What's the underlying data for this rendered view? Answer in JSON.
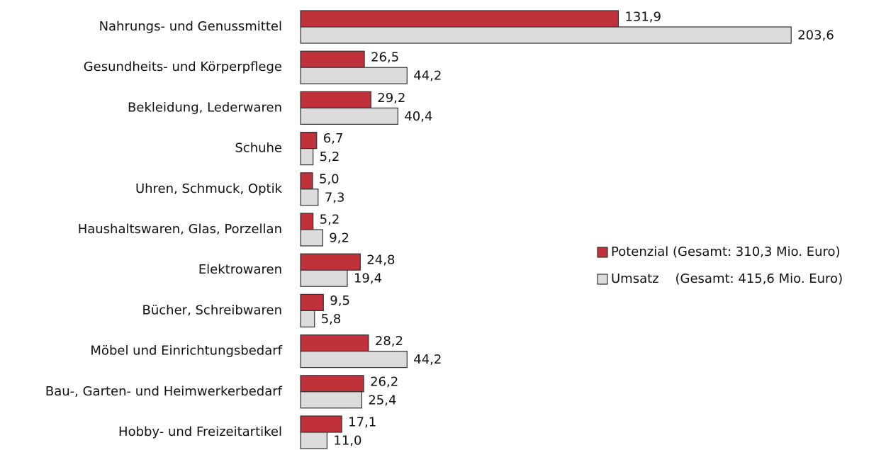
{
  "chart_data": {
    "type": "bar",
    "orientation": "horizontal",
    "categories": [
      "Nahrungs- und Genussmittel",
      "Gesundheits- und Körperpflege",
      "Bekleidung, Lederwaren",
      "Schuhe",
      "Uhren, Schmuck, Optik",
      "Haushaltswaren, Glas, Porzellan",
      "Elektrowaren",
      "Bücher, Schreibwaren",
      "Möbel und Einrichtungsbedarf",
      "Bau-, Garten- und Heimwerkerbedarf",
      "Hobby- und Freizeitartikel"
    ],
    "series": [
      {
        "name": "Potenzial (Gesamt: 310,3 Mio. Euro)",
        "color": "#c0313a",
        "values": [
          131.9,
          26.5,
          29.2,
          6.7,
          5.0,
          5.2,
          24.8,
          9.5,
          28.2,
          26.2,
          17.1
        ],
        "value_labels": [
          "131,9",
          "26,5",
          "29,2",
          "6,7",
          "5,0",
          "5,2",
          "24,8",
          "9,5",
          "28,2",
          "26,2",
          "17,1"
        ]
      },
      {
        "name": "Umsatz    (Gesamt: 415,6 Mio. Euro)",
        "color": "#dcdcdc",
        "values": [
          203.6,
          44.2,
          40.4,
          5.2,
          7.3,
          9.2,
          19.4,
          5.8,
          44.2,
          25.4,
          11.0
        ],
        "value_labels": [
          "203,6",
          "44,2",
          "40,4",
          "5,2",
          "7,3",
          "9,2",
          "19,4",
          "5,8",
          "44,2",
          "25,4",
          "11,0"
        ]
      }
    ],
    "legend": "right"
  }
}
